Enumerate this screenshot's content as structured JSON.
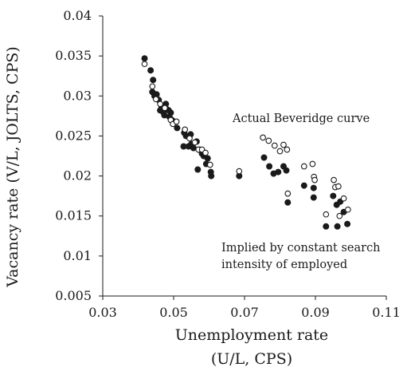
{
  "chart_data": {
    "type": "scatter",
    "title": "",
    "xlabel_line1": "Unemployment rate",
    "xlabel_line2": "(U/L, CPS)",
    "ylabel": "Vacancy rate (V/L, JOLTS, CPS)",
    "xlim": [
      0.03,
      0.11
    ],
    "ylim": [
      0.005,
      0.04
    ],
    "x_ticks": [
      0.03,
      0.05,
      0.07,
      0.09,
      0.11
    ],
    "x_tick_labels": [
      "0.03",
      "0.05",
      "0.07",
      "0.09",
      "0.11"
    ],
    "y_ticks": [
      0.005,
      0.01,
      0.015,
      0.02,
      0.025,
      0.03,
      0.035,
      0.04
    ],
    "y_tick_labels": [
      "0.005",
      "0.01",
      "0.015",
      "0.02",
      "0.025",
      "0.03",
      "0.035",
      "0.04"
    ],
    "grid": false,
    "annotations": [
      {
        "text": "Actual Beveridge curve"
      },
      {
        "text": "Implied by constant search"
      },
      {
        "text": "intensity of employed"
      }
    ],
    "series": [
      {
        "marker": "filled",
        "color": "#1a1a1a",
        "points": [
          [
            0.0418,
            0.0347
          ],
          [
            0.0435,
            0.0332
          ],
          [
            0.0442,
            0.032
          ],
          [
            0.044,
            0.0305
          ],
          [
            0.0446,
            0.03
          ],
          [
            0.0452,
            0.0302
          ],
          [
            0.0458,
            0.0295
          ],
          [
            0.0462,
            0.0282
          ],
          [
            0.0466,
            0.0287
          ],
          [
            0.047,
            0.028
          ],
          [
            0.0474,
            0.0276
          ],
          [
            0.0478,
            0.029
          ],
          [
            0.0482,
            0.0283
          ],
          [
            0.0486,
            0.0282
          ],
          [
            0.0488,
            0.0274
          ],
          [
            0.0492,
            0.0279
          ],
          [
            0.0495,
            0.027
          ],
          [
            0.05,
            0.0268
          ],
          [
            0.051,
            0.026
          ],
          [
            0.053,
            0.0254
          ],
          [
            0.0528,
            0.0237
          ],
          [
            0.0535,
            0.025
          ],
          [
            0.0542,
            0.0237
          ],
          [
            0.0548,
            0.0252
          ],
          [
            0.055,
            0.024
          ],
          [
            0.0556,
            0.0235
          ],
          [
            0.0565,
            0.0243
          ],
          [
            0.0572,
            0.0233
          ],
          [
            0.0568,
            0.0208
          ],
          [
            0.058,
            0.0228
          ],
          [
            0.0585,
            0.0225
          ],
          [
            0.0592,
            0.0215
          ],
          [
            0.0596,
            0.0222
          ],
          [
            0.0605,
            0.0205
          ],
          [
            0.0606,
            0.02
          ],
          [
            0.0685,
            0.02
          ],
          [
            0.0755,
            0.0223
          ],
          [
            0.077,
            0.0212
          ],
          [
            0.0782,
            0.0203
          ],
          [
            0.0795,
            0.0205
          ],
          [
            0.081,
            0.0212
          ],
          [
            0.0818,
            0.0207
          ],
          [
            0.0822,
            0.0167
          ],
          [
            0.0868,
            0.0188
          ],
          [
            0.0895,
            0.0185
          ],
          [
            0.0895,
            0.0173
          ],
          [
            0.093,
            0.0137
          ],
          [
            0.095,
            0.0175
          ],
          [
            0.096,
            0.0164
          ],
          [
            0.0962,
            0.0137
          ],
          [
            0.097,
            0.0168
          ],
          [
            0.098,
            0.0155
          ],
          [
            0.099,
            0.014
          ]
        ]
      },
      {
        "marker": "open",
        "color": "#1a1a1a",
        "points": [
          [
            0.0418,
            0.034
          ],
          [
            0.044,
            0.0312
          ],
          [
            0.045,
            0.0296
          ],
          [
            0.0462,
            0.029
          ],
          [
            0.0475,
            0.0285
          ],
          [
            0.0492,
            0.027
          ],
          [
            0.0498,
            0.0265
          ],
          [
            0.0508,
            0.0268
          ],
          [
            0.0532,
            0.0258
          ],
          [
            0.0545,
            0.0247
          ],
          [
            0.056,
            0.0242
          ],
          [
            0.057,
            0.0233
          ],
          [
            0.058,
            0.0233
          ],
          [
            0.059,
            0.0229
          ],
          [
            0.0603,
            0.0214
          ],
          [
            0.0685,
            0.0206
          ],
          [
            0.0752,
            0.0248
          ],
          [
            0.0768,
            0.0244
          ],
          [
            0.0785,
            0.0238
          ],
          [
            0.08,
            0.0231
          ],
          [
            0.081,
            0.0239
          ],
          [
            0.082,
            0.0233
          ],
          [
            0.0822,
            0.0178
          ],
          [
            0.0868,
            0.0212
          ],
          [
            0.0892,
            0.0215
          ],
          [
            0.0896,
            0.0199
          ],
          [
            0.0898,
            0.0195
          ],
          [
            0.093,
            0.0152
          ],
          [
            0.0952,
            0.0195
          ],
          [
            0.0956,
            0.0186
          ],
          [
            0.0965,
            0.0187
          ],
          [
            0.0968,
            0.015
          ],
          [
            0.098,
            0.0172
          ],
          [
            0.0992,
            0.0158
          ]
        ]
      }
    ]
  }
}
